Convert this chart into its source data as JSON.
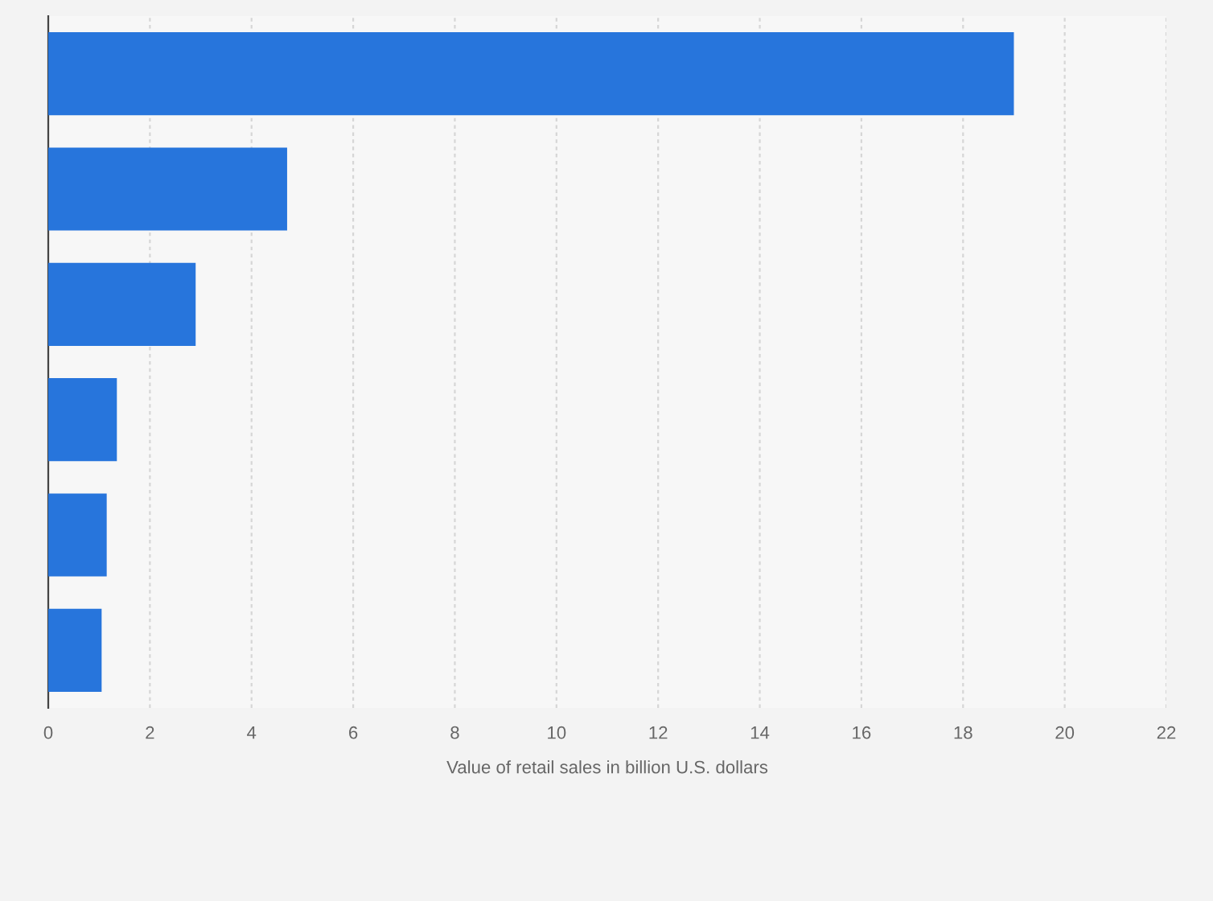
{
  "chart_data": {
    "type": "bar",
    "orientation": "horizontal",
    "categories": [
      null,
      null,
      null,
      null,
      null,
      null
    ],
    "values": [
      19.0,
      4.7,
      2.9,
      1.35,
      1.15,
      1.05
    ],
    "color": "#2775dc",
    "xlim": [
      0,
      22
    ],
    "xticks": [
      0,
      2,
      4,
      6,
      8,
      10,
      12,
      14,
      16,
      18,
      20,
      22
    ],
    "grid": "x",
    "xlabel": "Value of retail sales in billion U.S. dollars"
  }
}
